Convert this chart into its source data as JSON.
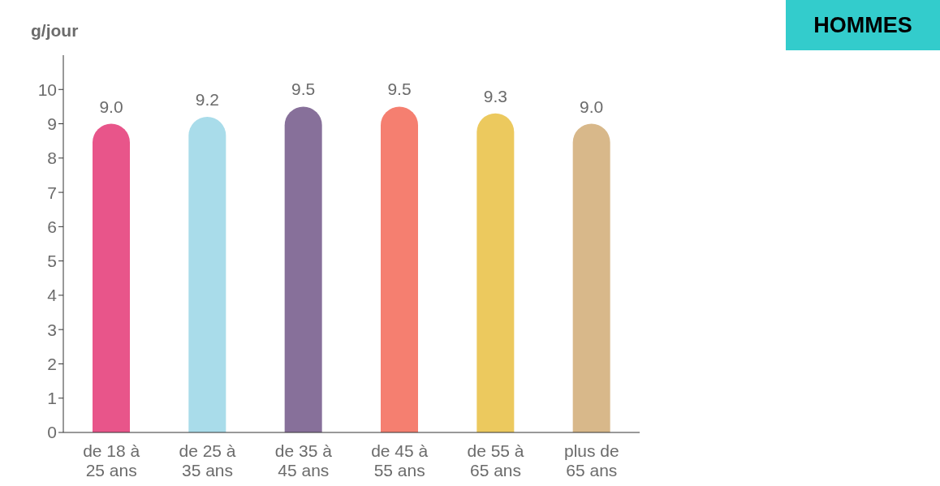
{
  "chart_data": {
    "type": "bar",
    "title": "HOMMES",
    "ylabel": "g/jour",
    "categories": [
      "de 18 à 25 ans",
      "de 25 à 35 ans",
      "de 35 à 45 ans",
      "de 45 à 55 ans",
      "de 55 à 65 ans",
      "plus de 65 ans"
    ],
    "values": [
      9.0,
      9.2,
      9.5,
      9.5,
      9.3,
      9.0
    ],
    "colors": [
      "#e8558a",
      "#a9dcea",
      "#87709a",
      "#f57f70",
      "#ecc95e",
      "#d8b88a"
    ],
    "value_labels": [
      "9.0",
      "9.2",
      "9.5",
      "9.5",
      "9.3",
      "9.0"
    ],
    "ylim": [
      0,
      11
    ],
    "yticks": [
      0,
      1,
      2,
      3,
      4,
      5,
      6,
      7,
      8,
      9,
      10
    ],
    "grid": false,
    "legend": false
  }
}
